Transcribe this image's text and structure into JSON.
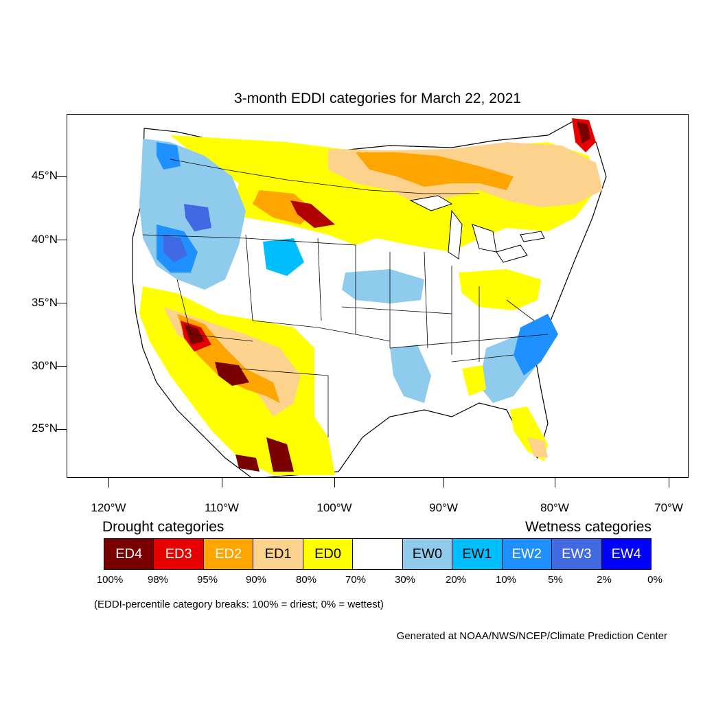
{
  "title": "3-month EDDI categories for March 22, 2021",
  "map": {
    "lat_labels": [
      "45°N",
      "40°N",
      "35°N",
      "30°N",
      "25°N"
    ],
    "lon_labels": [
      "120°W",
      "110°W",
      "100°W",
      "90°W",
      "80°W",
      "70°W"
    ],
    "lat_values": [
      45,
      40,
      35,
      30,
      25
    ],
    "lon_values": [
      -120,
      -110,
      -100,
      -90,
      -80,
      -70
    ],
    "regions": [
      {
        "name": "pacific-northwest",
        "category": "EW2"
      },
      {
        "name": "great-basin",
        "category": "EW3"
      },
      {
        "name": "northern-plains",
        "category": "ED1"
      },
      {
        "name": "southwest",
        "category": "ED4"
      },
      {
        "name": "mid-mississippi-valley",
        "category": "EW0"
      },
      {
        "name": "southeast-coast",
        "category": "EW2"
      },
      {
        "name": "ohio-valley",
        "category": "ED0"
      },
      {
        "name": "new-england-maine",
        "category": "ED4"
      }
    ]
  },
  "legend": {
    "drought_heading": "Drought categories",
    "wetness_heading": "Wetness categories",
    "categories": [
      {
        "label": "ED4",
        "color": "#7a0000",
        "text_color": "#ffffff"
      },
      {
        "label": "ED3",
        "color": "#e60000",
        "text_color": "#ffffff"
      },
      {
        "label": "ED2",
        "color": "#ffa500",
        "text_color": "#ffffff"
      },
      {
        "label": "ED1",
        "color": "#fcd28c",
        "text_color": "#000000"
      },
      {
        "label": "ED0",
        "color": "#ffff00",
        "text_color": "#000000"
      },
      {
        "label": "",
        "color": "#ffffff",
        "text_color": "#000000"
      },
      {
        "label": "EW0",
        "color": "#8ecbed",
        "text_color": "#000000"
      },
      {
        "label": "EW1",
        "color": "#00bfff",
        "text_color": "#000000"
      },
      {
        "label": "EW2",
        "color": "#1e90ff",
        "text_color": "#ffffff"
      },
      {
        "label": "EW3",
        "color": "#4169e1",
        "text_color": "#ffffff"
      },
      {
        "label": "EW4",
        "color": "#0000ff",
        "text_color": "#ffffff"
      }
    ],
    "breaks": [
      "100%",
      "98%",
      "95%",
      "90%",
      "80%",
      "70%",
      "30%",
      "20%",
      "10%",
      "5%",
      "2%",
      "0%"
    ],
    "note": "(EDDI-percentile category breaks: 100% = driest; 0% = wettest)"
  },
  "credit": "Generated at NOAA/NWS/NCEP/Climate Prediction Center"
}
